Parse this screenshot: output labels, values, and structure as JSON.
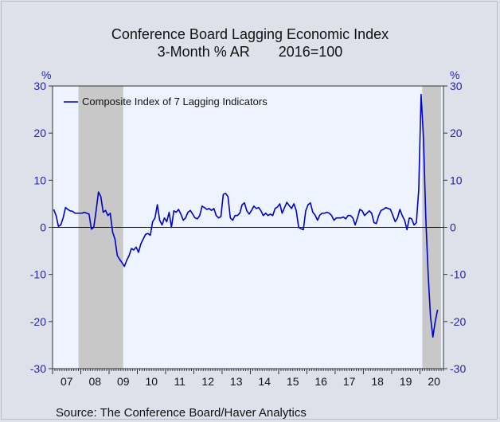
{
  "chart_data": {
    "type": "line",
    "title": "Conference Board Lagging Economic Index",
    "subtitle_left": "3-Month % AR",
    "subtitle_right": "2016=100",
    "ylabel_left": "%",
    "ylabel_right": "%",
    "source": "Source:  The Conference Board/Haver Analytics",
    "ylim": [
      -30,
      30
    ],
    "yticks": [
      30,
      20,
      10,
      0,
      -10,
      -20,
      -30
    ],
    "xlim": [
      "2007-01",
      "2020-10"
    ],
    "year_labels": [
      "07",
      "08",
      "09",
      "10",
      "11",
      "12",
      "13",
      "14",
      "15",
      "16",
      "17",
      "18",
      "19",
      "20"
    ],
    "recessions": [
      {
        "start": "2007-12",
        "end": "2009-06"
      },
      {
        "start": "2020-02",
        "end": "2020-09"
      }
    ],
    "grid": false,
    "legend_placement": "top-left",
    "colors": {
      "line": "#0000cc",
      "recession": "#c8c8c8",
      "plot_bg": "#eef4ff",
      "zero_line": "#000000"
    },
    "series": [
      {
        "name": "Composite Index of 7 Lagging Indicators",
        "start": "2007-01",
        "values": [
          3.8,
          2.5,
          0.2,
          0.5,
          2.0,
          4.2,
          3.8,
          3.5,
          3.4,
          3.0,
          3.0,
          3.0,
          3.0,
          3.2,
          3.0,
          2.8,
          -0.4,
          0.0,
          3.5,
          7.5,
          6.5,
          3.2,
          3.6,
          2.5,
          3.0,
          -1.0,
          -2.5,
          -6.0,
          -6.8,
          -7.5,
          -8.3,
          -7.0,
          -6.0,
          -4.5,
          -4.8,
          -4.2,
          -5.3,
          -3.5,
          -2.5,
          -1.5,
          -1.3,
          -1.7,
          1.2,
          2.0,
          4.8,
          1.5,
          0.5,
          2.0,
          1.2,
          3.2,
          0.0,
          3.5,
          3.2,
          3.8,
          2.8,
          1.5,
          2.0,
          3.2,
          3.6,
          2.8,
          2.0,
          1.8,
          2.5,
          4.5,
          4.2,
          3.8,
          4.0,
          3.6,
          4.0,
          2.5,
          2.0,
          2.3,
          7.0,
          7.2,
          6.5,
          2.0,
          1.5,
          2.5,
          2.5,
          3.0,
          4.8,
          5.2,
          3.5,
          2.8,
          3.6,
          4.5,
          4.0,
          4.2,
          3.5,
          2.5,
          3.0,
          2.5,
          2.8,
          2.5,
          4.0,
          4.3,
          5.0,
          3.0,
          4.2,
          5.3,
          4.6,
          4.0,
          5.0,
          3.5,
          0.0,
          -0.3,
          -0.5,
          3.5,
          4.8,
          5.2,
          3.2,
          2.6,
          1.5,
          2.6,
          3.0,
          3.0,
          3.2,
          3.0,
          2.5,
          1.5,
          2.0,
          2.0,
          2.0,
          2.2,
          1.8,
          2.5,
          2.5,
          2.0,
          0.5,
          2.0,
          3.8,
          3.5,
          2.5,
          3.0,
          3.5,
          3.0,
          1.0,
          0.8,
          2.5,
          3.6,
          3.8,
          4.2,
          4.0,
          3.8,
          2.5,
          1.2,
          2.0,
          3.8,
          2.5,
          1.5,
          -0.5,
          2.0,
          1.8,
          0.5,
          1.0,
          8.0,
          28.2,
          19.0,
          2.0,
          -10.0,
          -19.0,
          -23.3,
          -20.0,
          -17.5
        ]
      }
    ]
  }
}
